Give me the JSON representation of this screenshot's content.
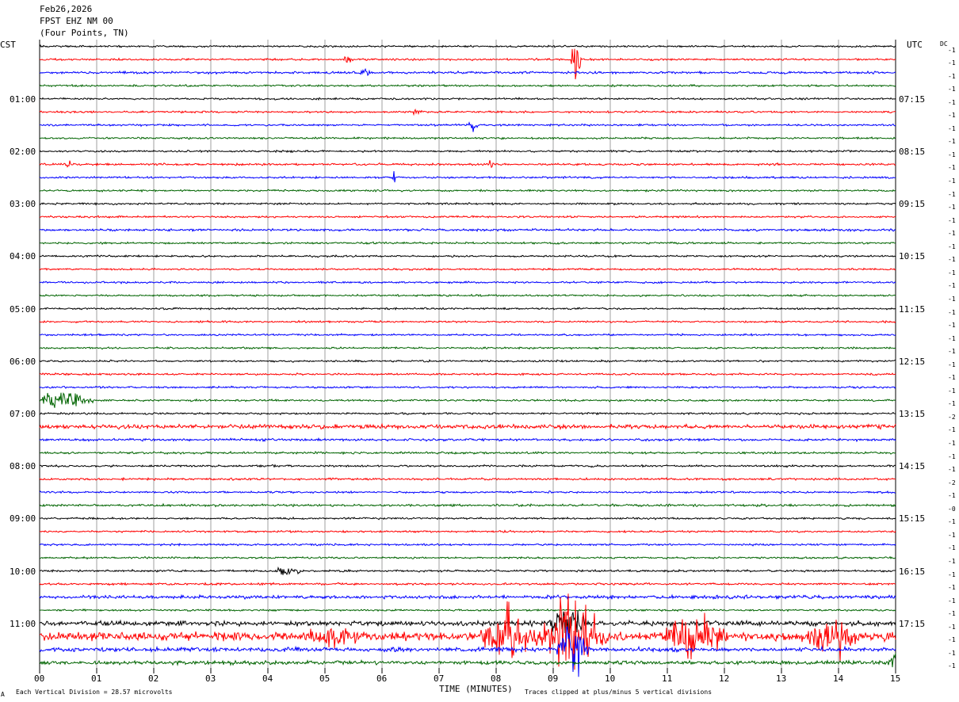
{
  "header": {
    "date": "Feb26,2026",
    "station": "FPST EHZ NM 00",
    "location": "(Four Points, TN)"
  },
  "left_tz": "CST",
  "right_tz": "UTC",
  "dc_label": "DC",
  "footer": {
    "scale_note": "Each Vertical Division =   28.57 microvolts",
    "x_title": "TIME (MINUTES)",
    "clip_note": "Traces clipped at plus/minus 5 vertical divisions",
    "corner_mark": "A"
  },
  "colors": [
    "#000000",
    "#ff0000",
    "#0000ff",
    "#006400"
  ],
  "chart_data": {
    "type": "line",
    "title": "FPST EHZ NM 00",
    "xlabel": "TIME (MINUTES)",
    "xlim": [
      0,
      15
    ],
    "x_ticks": [
      "00",
      "01",
      "02",
      "03",
      "04",
      "05",
      "06",
      "07",
      "08",
      "09",
      "10",
      "11",
      "12",
      "13",
      "14",
      "15"
    ],
    "rows": 48,
    "left_hour_labels": [
      "01:00",
      "02:00",
      "03:00",
      "04:00",
      "05:00",
      "06:00",
      "07:00",
      "08:00",
      "09:00",
      "10:00",
      "11:00"
    ],
    "right_hour_labels": [
      "07:15",
      "08:15",
      "09:15",
      "10:15",
      "11:15",
      "12:15",
      "13:15",
      "14:15",
      "15:15",
      "16:15",
      "17:15"
    ],
    "dc_offsets": [
      "-1",
      "-1",
      "-1",
      "-1",
      "-1",
      "-1",
      "-1",
      "-1",
      "-1",
      "-1",
      "-1",
      "-1",
      "-1",
      "-1",
      "-1",
      "-1",
      "-1",
      "-1",
      "-1",
      "-1",
      "-1",
      "-1",
      "-1",
      "-1",
      "-1",
      "-1",
      "-1",
      "-1",
      "-2",
      "-1",
      "-1",
      "-1",
      "-1",
      "-2",
      "-1",
      "-0",
      "-1",
      "-1",
      "-1",
      "-1",
      "-1",
      "-1",
      "-1",
      "-1",
      "-1",
      "-1",
      "-1",
      "-1"
    ],
    "noise_levels": [
      1,
      1,
      1.2,
      1,
      1,
      1,
      1,
      1,
      1,
      1.1,
      1,
      1,
      1,
      1,
      1.2,
      1,
      1,
      1,
      1,
      1,
      1,
      1,
      1,
      1,
      1,
      1,
      1,
      1,
      1,
      2.2,
      1.3,
      1.1,
      1.1,
      1.1,
      1,
      1.2,
      1,
      1,
      1,
      1,
      1.1,
      1.1,
      1.8,
      1,
      2.6,
      4.5,
      2.2,
      2
    ],
    "events": [
      {
        "row": 1,
        "minute": 9.4,
        "amp": 30,
        "dur": 0.1
      },
      {
        "row": 1,
        "minute": 5.4,
        "amp": 5,
        "dur": 0.1
      },
      {
        "row": 2,
        "minute": 5.7,
        "amp": 4,
        "dur": 0.1
      },
      {
        "row": 5,
        "minute": 6.6,
        "amp": 4,
        "dur": 0.1
      },
      {
        "row": 6,
        "minute": 7.6,
        "amp": 6,
        "dur": 0.1
      },
      {
        "row": 9,
        "minute": 0.5,
        "amp": 9,
        "dur": 0.05
      },
      {
        "row": 9,
        "minute": 7.9,
        "amp": 5,
        "dur": 0.05
      },
      {
        "row": 10,
        "minute": 6.2,
        "amp": 10,
        "dur": 0.05
      },
      {
        "row": 27,
        "minute": 0.4,
        "amp": 10,
        "dur": 0.6
      },
      {
        "row": 40,
        "minute": 4.35,
        "amp": 5,
        "dur": 0.3
      },
      {
        "row": 45,
        "minute": 8.2,
        "amp": 25,
        "dur": 0.5
      },
      {
        "row": 45,
        "minute": 9.3,
        "amp": 40,
        "dur": 0.7
      },
      {
        "row": 45,
        "minute": 11.5,
        "amp": 25,
        "dur": 0.6
      },
      {
        "row": 45,
        "minute": 13.9,
        "amp": 22,
        "dur": 0.5
      },
      {
        "row": 45,
        "minute": 5.1,
        "amp": 10,
        "dur": 0.5
      },
      {
        "row": 46,
        "minute": 9.35,
        "amp": 30,
        "dur": 0.3
      },
      {
        "row": 44,
        "minute": 9.3,
        "amp": 20,
        "dur": 0.4
      },
      {
        "row": 47,
        "minute": 15,
        "amp": 8,
        "dur": 0.15
      }
    ]
  }
}
